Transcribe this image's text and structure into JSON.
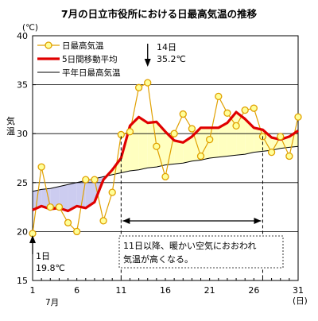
{
  "chart_data": {
    "type": "line",
    "title": "7月の日立市役所における日最高気温の推移",
    "ylabel": "気温",
    "yunit": "(℃)",
    "xunit": "(日)",
    "month_label": "7月",
    "ylim": [
      15,
      40
    ],
    "xlim": [
      1,
      31
    ],
    "yticks": [
      15,
      20,
      25,
      30,
      35,
      40
    ],
    "xticks": [
      1,
      6,
      11,
      16,
      21,
      26,
      31
    ],
    "grid": "horizontal",
    "legend_position": "top-left",
    "x": [
      1,
      2,
      3,
      4,
      5,
      6,
      7,
      8,
      9,
      10,
      11,
      12,
      13,
      14,
      15,
      16,
      17,
      18,
      19,
      20,
      21,
      22,
      23,
      24,
      25,
      26,
      27,
      28,
      29,
      30,
      31
    ],
    "series": [
      {
        "name": "日最高気温",
        "color": "#e0a000",
        "marker": "circle",
        "marker_fill": "#ffff99",
        "values": [
          19.8,
          26.6,
          22.5,
          22.5,
          20.9,
          20.0,
          25.3,
          25.3,
          21.1,
          24.0,
          29.9,
          30.2,
          34.7,
          35.2,
          28.7,
          25.6,
          30.0,
          32.0,
          30.5,
          27.7,
          29.4,
          33.8,
          32.1,
          30.8,
          32.4,
          32.6,
          29.7,
          28.1,
          29.7,
          27.7,
          31.7
        ]
      },
      {
        "name": "5日間移動平均",
        "color": "#e00000",
        "values": [
          22.2,
          22.6,
          22.3,
          22.4,
          22.1,
          22.6,
          22.4,
          23.0,
          25.3,
          26.3,
          27.5,
          30.8,
          31.7,
          31.1,
          31.2,
          30.2,
          29.3,
          29.1,
          29.7,
          30.6,
          30.6,
          30.6,
          31.1,
          32.2,
          31.5,
          30.6,
          30.4,
          29.6,
          29.4,
          29.7,
          30.3
        ]
      },
      {
        "name": "平年日最高気温",
        "color": "#000000",
        "values": [
          24.1,
          24.3,
          24.4,
          24.6,
          24.8,
          25.0,
          25.2,
          25.4,
          25.6,
          25.8,
          26.0,
          26.2,
          26.3,
          26.5,
          26.6,
          26.8,
          26.9,
          27.0,
          27.2,
          27.3,
          27.5,
          27.6,
          27.7,
          27.8,
          27.9,
          28.1,
          28.2,
          28.3,
          28.5,
          28.6,
          28.7
        ]
      }
    ],
    "fills": {
      "above_normal": "#ffffc0",
      "below_normal": "#ccccf0"
    },
    "annotations": {
      "peak": {
        "day": "14日",
        "value": "35.2℃"
      },
      "start": {
        "day": "1日",
        "value": "19.8℃"
      },
      "note_line1": "11日以降、暖かい空気におおわれ",
      "note_line2": "気温が高くなる。"
    }
  }
}
